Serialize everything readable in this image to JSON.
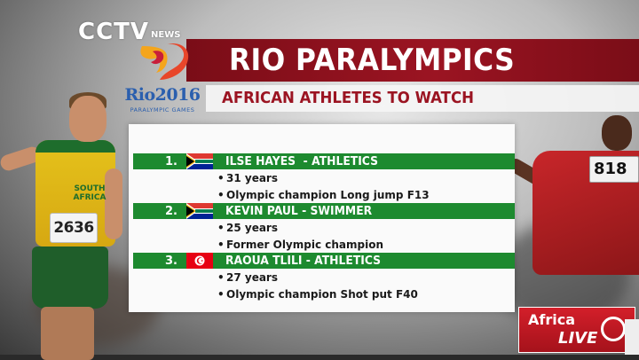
{
  "broadcaster": {
    "logo_text": "CCTV",
    "logo_suffix": "NEWS"
  },
  "event_logo": {
    "wordmark": "Rio2016",
    "subtext": "PARALYMPIC GAMES"
  },
  "title": "RIO PARALYMPICS",
  "subtitle": "AFRICAN ATHLETES TO WATCH",
  "athletes": [
    {
      "rank": "1.",
      "name": "ILSE HAYES  - ATHLETICS",
      "flag": "south-africa-flag",
      "details": [
        "31 years",
        "Olympic champion Long jump F13"
      ]
    },
    {
      "rank": "2.",
      "name": "KEVIN PAUL - SWIMMER",
      "flag": "south-africa-flag",
      "details": [
        "25 years",
        "Former Olympic champion"
      ]
    },
    {
      "rank": "3.",
      "name": "RAOUA TLILI - ATHLETICS",
      "flag": "tunisia-flag",
      "details": [
        "27 years",
        "Olympic champion Shot put F40"
      ]
    }
  ],
  "background": {
    "left_jersey_text": "SOUTH AFRICA",
    "left_bib": "2636",
    "right_bib": "818"
  },
  "program_badge": {
    "line1": "Africa",
    "line2": "LIVE"
  },
  "colors": {
    "title_bar": "#9b1422",
    "row_green": "#1d8a2f",
    "subtitle_text": "#9b1422",
    "badge_red": "#d31f2a"
  }
}
